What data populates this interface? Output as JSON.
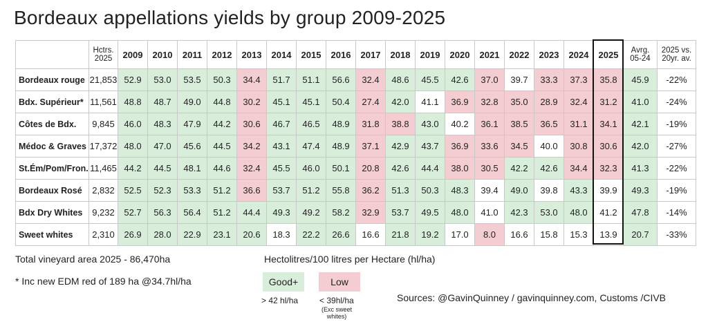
{
  "title": "Bordeaux appellations yields by group 2009-2025",
  "table": {
    "header": {
      "hectares": "Hctrs.\n2025",
      "years": [
        "2009",
        "2010",
        "2011",
        "2012",
        "2013",
        "2014",
        "2015",
        "2016",
        "2017",
        "2018",
        "2019",
        "2020",
        "2021",
        "2022",
        "2023",
        "2024",
        "2025"
      ],
      "average": "Avrg.\n05-24",
      "change": "2025 vs.\n20yr. av."
    },
    "rows": [
      {
        "label": "Bordeaux rouge",
        "hectares": "21,853",
        "values": [
          "52.9",
          "53.0",
          "53.5",
          "50.3",
          "34.4",
          "51.7",
          "51.1",
          "56.6",
          "32.4",
          "48.6",
          "45.5",
          "42.6",
          "37.0",
          "39.7",
          "33.3",
          "37.3",
          "35.8"
        ],
        "average": "45.9",
        "change": "-22%",
        "fills": [
          "#d8eedb",
          "#d8eedb",
          "#d8eedb",
          "#d8eedb",
          "#f3cdd2",
          "#d8eedb",
          "#d8eedb",
          "#d8eedb",
          "#f3cdd2",
          "#d8eedb",
          "#d8eedb",
          "#d8eedb",
          "#f3cdd2",
          "#ffffff",
          "#f3cdd2",
          "#f3cdd2",
          "#f3cdd2",
          "#d8eedb"
        ]
      },
      {
        "label": "Bdx. Supérieur*",
        "hectares": "11,561",
        "values": [
          "48.8",
          "48.7",
          "49.0",
          "44.8",
          "30.2",
          "45.1",
          "45.1",
          "50.4",
          "27.4",
          "42.0",
          "41.1",
          "36.9",
          "32.8",
          "35.0",
          "28.9",
          "32.4",
          "31.2"
        ],
        "average": "41.0",
        "change": "-24%",
        "fills": [
          "#d8eedb",
          "#d8eedb",
          "#d8eedb",
          "#d8eedb",
          "#f3cdd2",
          "#d8eedb",
          "#d8eedb",
          "#d8eedb",
          "#f3cdd2",
          "#d8eedb",
          "#ffffff",
          "#f3cdd2",
          "#f3cdd2",
          "#f3cdd2",
          "#f3cdd2",
          "#f3cdd2",
          "#f3cdd2",
          "#d8eedb"
        ]
      },
      {
        "label": "Côtes de Bdx.",
        "hectares": "9,845",
        "values": [
          "46.0",
          "48.3",
          "47.9",
          "44.2",
          "30.6",
          "46.7",
          "46.5",
          "48.9",
          "31.8",
          "38.8",
          "43.0",
          "40.2",
          "36.1",
          "38.5",
          "36.5",
          "31.1",
          "34.1"
        ],
        "average": "42.1",
        "change": "-19%",
        "fills": [
          "#d8eedb",
          "#d8eedb",
          "#d8eedb",
          "#d8eedb",
          "#f3cdd2",
          "#d8eedb",
          "#d8eedb",
          "#d8eedb",
          "#f3cdd2",
          "#f3cdd2",
          "#d8eedb",
          "#ffffff",
          "#f3cdd2",
          "#f3cdd2",
          "#f3cdd2",
          "#f3cdd2",
          "#f3cdd2",
          "#d8eedb"
        ]
      },
      {
        "label": "Médoc & Graves",
        "hectares": "17,372",
        "values": [
          "48.0",
          "47.0",
          "45.6",
          "44.5",
          "34.2",
          "43.1",
          "47.4",
          "48.9",
          "37.1",
          "42.9",
          "43.7",
          "36.9",
          "33.6",
          "34.5",
          "40.0",
          "30.8",
          "30.6"
        ],
        "average": "42.0",
        "change": "-27%",
        "fills": [
          "#d8eedb",
          "#d8eedb",
          "#d8eedb",
          "#d8eedb",
          "#f3cdd2",
          "#d8eedb",
          "#d8eedb",
          "#d8eedb",
          "#f3cdd2",
          "#d8eedb",
          "#d8eedb",
          "#f3cdd2",
          "#f3cdd2",
          "#f3cdd2",
          "#ffffff",
          "#f3cdd2",
          "#f3cdd2",
          "#d8eedb"
        ]
      },
      {
        "label": "St.Ém/Pom/Fron.",
        "hectares": "11,465",
        "values": [
          "44.2",
          "44.5",
          "48.1",
          "44.6",
          "32.4",
          "45.5",
          "46.0",
          "50.1",
          "20.8",
          "42.6",
          "44.4",
          "38.0",
          "30.5",
          "42.2",
          "42.6",
          "34.4",
          "32.3"
        ],
        "average": "41.3",
        "change": "-22%",
        "fills": [
          "#d8eedb",
          "#d8eedb",
          "#d8eedb",
          "#d8eedb",
          "#f3cdd2",
          "#d8eedb",
          "#d8eedb",
          "#d8eedb",
          "#f3cdd2",
          "#d8eedb",
          "#d8eedb",
          "#f3cdd2",
          "#f3cdd2",
          "#d8eedb",
          "#d8eedb",
          "#f3cdd2",
          "#f3cdd2",
          "#d8eedb"
        ]
      },
      {
        "label": "Bordeaux Rosé",
        "hectares": "2,832",
        "values": [
          "52.5",
          "52.3",
          "53.3",
          "51.2",
          "36.6",
          "53.7",
          "51.2",
          "55.8",
          "36.2",
          "51.3",
          "50.3",
          "48.3",
          "39.4",
          "49.0",
          "39.8",
          "43.3",
          "39.9"
        ],
        "average": "49.3",
        "change": "-19%",
        "fills": [
          "#d8eedb",
          "#d8eedb",
          "#d8eedb",
          "#d8eedb",
          "#f3cdd2",
          "#d8eedb",
          "#d8eedb",
          "#d8eedb",
          "#f3cdd2",
          "#d8eedb",
          "#d8eedb",
          "#d8eedb",
          "#ffffff",
          "#d8eedb",
          "#ffffff",
          "#d8eedb",
          "#ffffff",
          "#d8eedb"
        ]
      },
      {
        "label": "Bdx  Dry Whites",
        "hectares": "9,232",
        "values": [
          "52.7",
          "56.3",
          "56.4",
          "51.2",
          "44.4",
          "49.3",
          "49.2",
          "58.2",
          "32.9",
          "53.7",
          "49.5",
          "48.0",
          "41.0",
          "42.3",
          "53.0",
          "48.0",
          "41.2"
        ],
        "average": "47.8",
        "change": "-14%",
        "fills": [
          "#d8eedb",
          "#d8eedb",
          "#d8eedb",
          "#d8eedb",
          "#d8eedb",
          "#d8eedb",
          "#d8eedb",
          "#d8eedb",
          "#f3cdd2",
          "#d8eedb",
          "#d8eedb",
          "#d8eedb",
          "#ffffff",
          "#d8eedb",
          "#d8eedb",
          "#d8eedb",
          "#ffffff",
          "#d8eedb"
        ]
      },
      {
        "label": "Sweet whites",
        "hectares": "2,310",
        "values": [
          "26.9",
          "28.0",
          "22.9",
          "23.1",
          "20.6",
          "18.3",
          "22.2",
          "26.6",
          "16.6",
          "21.8",
          "19.2",
          "17.0",
          "8.0",
          "16.6",
          "15.8",
          "15.3",
          "13.9"
        ],
        "average": "20.7",
        "change": "-33%",
        "fills": [
          "#d8eedb",
          "#d8eedb",
          "#d8eedb",
          "#d8eedb",
          "#d8eedb",
          "#ffffff",
          "#d8eedb",
          "#d8eedb",
          "#ffffff",
          "#d8eedb",
          "#d8eedb",
          "#ffffff",
          "#f3cdd2",
          "#ffffff",
          "#ffffff",
          "#ffffff",
          "#ffffff",
          "#d8eedb"
        ]
      }
    ]
  },
  "notes": {
    "total": "Total vineyard area 2025 - 86,470ha",
    "footnote": "* Inc new EDM red of 189 ha @34.7hl/ha"
  },
  "legend": {
    "title": "Hectolitres/100 litres per Hectare (hl/ha)",
    "good": {
      "label": "Good+",
      "color": "#d8eedb",
      "note": "> 42 hl/ha"
    },
    "low": {
      "label": "Low",
      "color": "#f3cdd2",
      "note": "< 39hl/ha",
      "subnote": "(Exc sweet\nwhites)"
    }
  },
  "sources": "Sources: @GavinQuinney / gavinquinney.com, Customs /CIVB"
}
